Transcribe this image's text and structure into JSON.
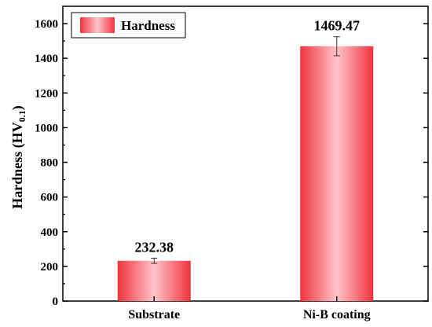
{
  "chart_data": {
    "type": "bar",
    "categories": [
      "Substrate",
      "Ni-B coating"
    ],
    "series": [
      {
        "name": "Hardness",
        "values": [
          232.38,
          1469.47
        ],
        "errors": [
          15,
          55
        ],
        "data_labels": [
          "232.38",
          "1469.47"
        ]
      }
    ],
    "ylabel": {
      "main": "Hardness (HV",
      "subscript": "0.1",
      "close": ")"
    },
    "xlabel": "",
    "ylim": [
      0,
      1700
    ],
    "yticks": [
      0,
      200,
      400,
      600,
      800,
      1000,
      1200,
      1400,
      1600
    ],
    "grid": false,
    "legend_position": "top-left",
    "colors": {
      "bar_edge": "#f0333f",
      "bar_center": "#ffc4c8",
      "axis": "#000000",
      "error_bar": "#333333"
    }
  }
}
